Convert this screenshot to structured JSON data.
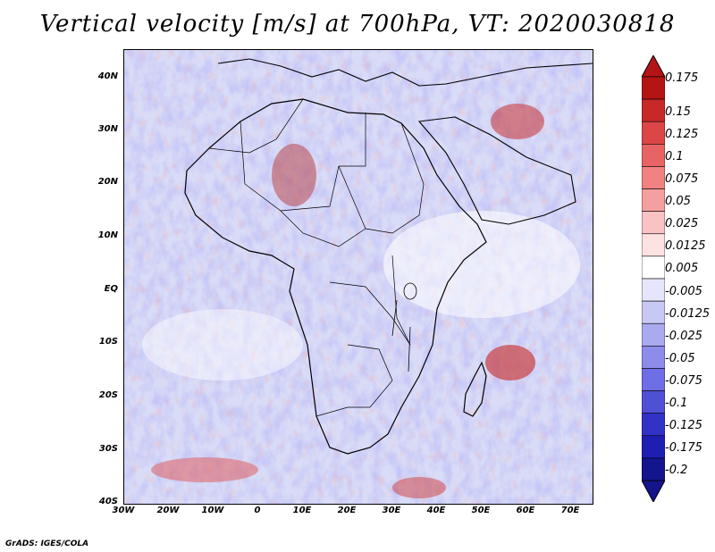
{
  "title": "Vertical velocity [m/s] at 700hPa, VT: 2020030818",
  "footer": "GrADS: IGES/COLA",
  "map": {
    "region": "Africa",
    "lon_range": [
      -30,
      75
    ],
    "lat_range": [
      -40,
      45
    ],
    "variable": "Vertical velocity",
    "units": "m/s",
    "level": "700hPa",
    "valid_time": "2020030818"
  },
  "axes": {
    "lat_ticks": [
      "40N",
      "30N",
      "20N",
      "10N",
      "EQ",
      "10S",
      "20S",
      "30S",
      "40S"
    ],
    "lon_ticks": [
      "30W",
      "20W",
      "10W",
      "0",
      "10E",
      "20E",
      "30E",
      "40E",
      "50E",
      "60E",
      "70E"
    ]
  },
  "colorbar": {
    "labels": [
      "0.175",
      "0.15",
      "0.125",
      "0.1",
      "0.075",
      "0.05",
      "0.025",
      "0.0125",
      "0.005",
      "-0.005",
      "-0.0125",
      "-0.025",
      "-0.05",
      "-0.075",
      "-0.1",
      "-0.125",
      "-0.175",
      "-0.2"
    ],
    "colors": [
      "#b41414",
      "#c82828",
      "#dc4646",
      "#e66464",
      "#f08282",
      "#f5a0a0",
      "#fac3c3",
      "#fde2e2",
      "#ffffff",
      "#e6e6fa",
      "#c8c8f5",
      "#aaaaf0",
      "#8c8ceb",
      "#6e6ee6",
      "#5050d7",
      "#3232c8",
      "#1e1eb4",
      "#14148c"
    ]
  }
}
